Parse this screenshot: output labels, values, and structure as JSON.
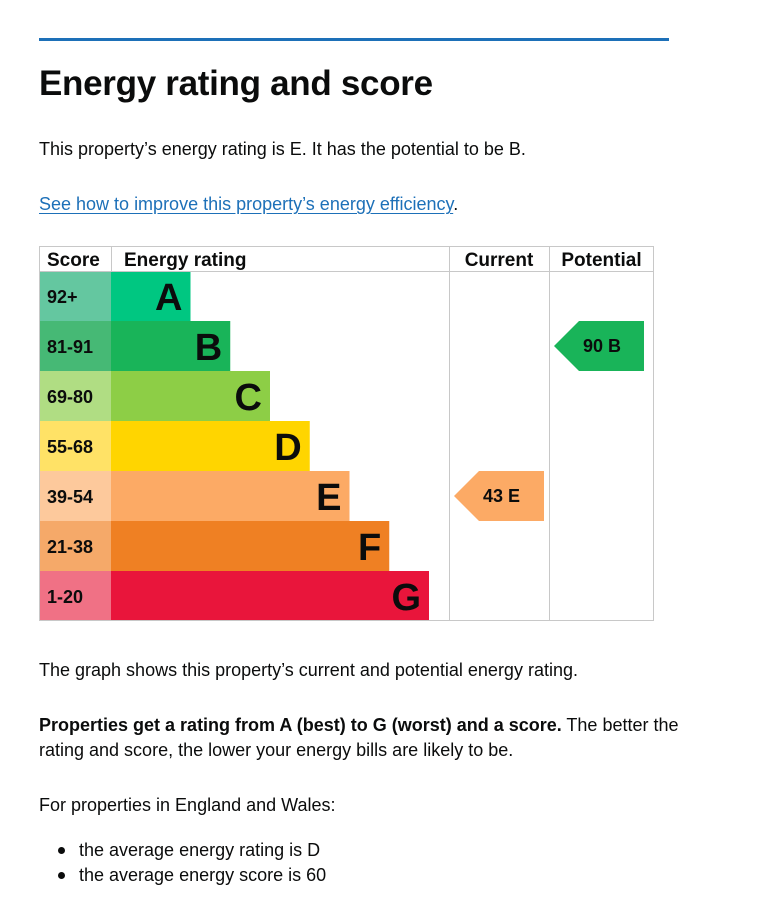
{
  "heading": "Energy rating and score",
  "summary": "This property’s energy rating is E. It has the potential to be B.",
  "link": {
    "text": "See how to improve this property’s energy efficiency",
    "suffix": "."
  },
  "chart_data": {
    "type": "table",
    "columns": [
      "Score",
      "Energy rating",
      "Current",
      "Potential"
    ],
    "bands": [
      {
        "score": "92+",
        "letter": "A",
        "color": "#008054",
        "score_color": "#64c7a0",
        "bar_color": "#00c781"
      },
      {
        "score": "81-91",
        "letter": "B",
        "color": "#19b459",
        "score_color": "#46b975",
        "bar_color": "#19b459"
      },
      {
        "score": "69-80",
        "letter": "C",
        "color": "#8dce46",
        "score_color": "#b0dd83",
        "bar_color": "#8dce46"
      },
      {
        "score": "55-68",
        "letter": "D",
        "color": "#ffd500",
        "score_color": "#ffe266",
        "bar_color": "#ffd500"
      },
      {
        "score": "39-54",
        "letter": "E",
        "color": "#fcaa65",
        "score_color": "#fdc99c",
        "bar_color": "#fcaa65"
      },
      {
        "score": "21-38",
        "letter": "F",
        "color": "#ef8023",
        "score_color": "#f5a969",
        "bar_color": "#ef8023"
      },
      {
        "score": "1-20",
        "letter": "G",
        "color": "#e9153b",
        "score_color": "#f07185",
        "bar_color": "#e9153b"
      }
    ],
    "current": {
      "score": 43,
      "letter": "E",
      "label": "43  E"
    },
    "potential": {
      "score": 90,
      "letter": "B",
      "label": "90  B"
    }
  },
  "para1": "The graph shows this property’s current and potential energy rating.",
  "para2_bold": "Properties get a rating from A (best) to G (worst) and a score.",
  "para2_rest": " The better the rating and score, the lower your energy bills are likely to be.",
  "para3": "For properties in England and Wales:",
  "bullets": [
    "the average energy rating is D",
    "the average energy score is 60"
  ]
}
